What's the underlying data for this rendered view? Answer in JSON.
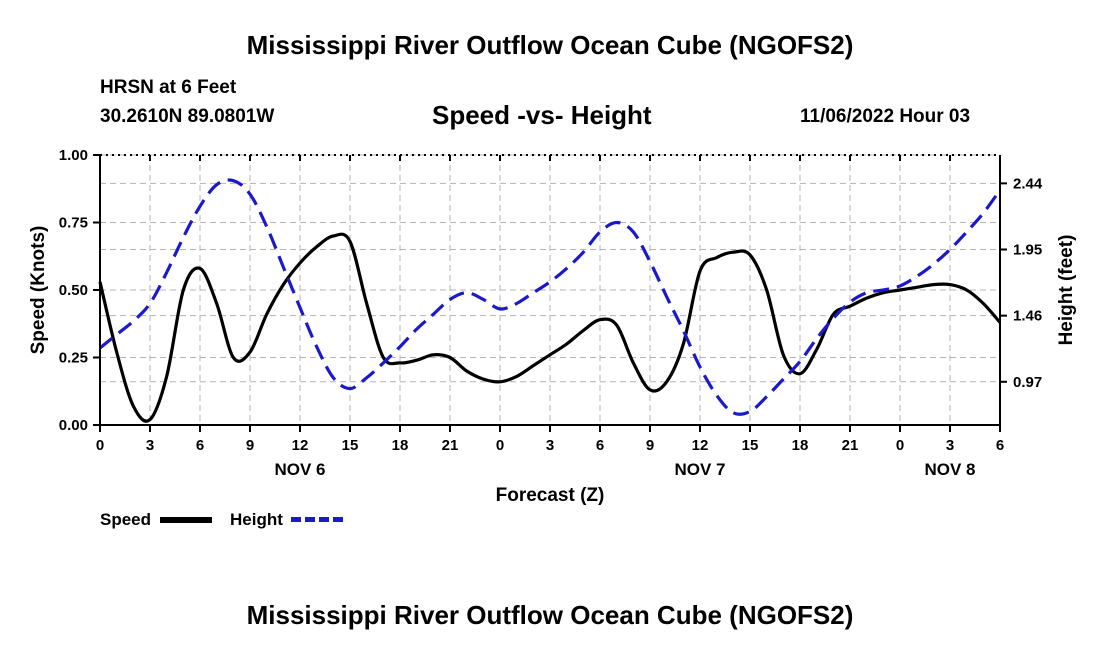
{
  "header": {
    "title": "Mississippi River Outflow Ocean Cube (NGOFS2)",
    "station": "HRSN at 6 Feet",
    "latlon": "30.2610N  89.0801W",
    "subtitle": "Speed -vs- Height",
    "datetime": "11/06/2022 Hour 03"
  },
  "footer": {
    "title": "Mississippi River Outflow Ocean Cube (NGOFS2)"
  },
  "legend": {
    "speed_label": "Speed",
    "height_label": "Height"
  },
  "colors": {
    "speed": "#000000",
    "height": "#1a1acc",
    "grid": "#b4b4b4"
  },
  "chart_data": {
    "type": "line",
    "xlabel": "Forecast (Z)",
    "ylabel": "Speed (Knots)",
    "ylabel_right": "Height (feet)",
    "xlim": [
      0,
      54
    ],
    "ylim": [
      0,
      1.0
    ],
    "ylim_right": [
      0.65,
      2.65
    ],
    "x_ticks": [
      0,
      3,
      6,
      9,
      12,
      15,
      18,
      21,
      24,
      27,
      30,
      33,
      36,
      39,
      42,
      45,
      48,
      51,
      54
    ],
    "x_tick_labels": [
      "0",
      "3",
      "6",
      "9",
      "12",
      "15",
      "18",
      "21",
      "0",
      "3",
      "6",
      "9",
      "12",
      "15",
      "18",
      "21",
      "0",
      "3",
      "6"
    ],
    "day_labels": [
      {
        "x": 12,
        "label": "NOV 6"
      },
      {
        "x": 36,
        "label": "NOV 7"
      },
      {
        "x": 51,
        "label": "NOV 8"
      }
    ],
    "y_ticks": [
      0,
      0.25,
      0.5,
      0.75,
      1.0
    ],
    "y_tick_labels": [
      "0.00",
      "0.25",
      "0.50",
      "0.75",
      "1.00"
    ],
    "y_ticks_right": [
      0.97,
      1.46,
      1.95,
      2.44
    ],
    "y_tick_labels_right": [
      "0.97",
      "1.46",
      "1.95",
      "2.44"
    ],
    "series": [
      {
        "name": "Speed",
        "axis": "left",
        "style": "solid",
        "x": [
          0,
          1,
          2,
          3,
          4,
          5,
          6,
          7,
          8,
          9,
          10,
          11,
          12,
          13,
          14,
          15,
          16,
          17,
          18,
          19,
          20,
          21,
          22,
          23,
          24,
          25,
          26,
          27,
          28,
          29,
          30,
          31,
          32,
          33,
          34,
          35,
          36,
          37,
          38,
          39,
          40,
          41,
          42,
          43,
          44,
          45,
          46,
          47,
          48,
          49,
          50,
          51,
          52,
          53,
          54
        ],
        "values": [
          0.53,
          0.27,
          0.07,
          0.02,
          0.18,
          0.5,
          0.58,
          0.45,
          0.25,
          0.27,
          0.41,
          0.52,
          0.6,
          0.66,
          0.7,
          0.68,
          0.45,
          0.25,
          0.23,
          0.24,
          0.26,
          0.25,
          0.2,
          0.17,
          0.16,
          0.18,
          0.22,
          0.26,
          0.3,
          0.35,
          0.39,
          0.37,
          0.23,
          0.13,
          0.16,
          0.3,
          0.57,
          0.62,
          0.64,
          0.63,
          0.5,
          0.26,
          0.19,
          0.28,
          0.41,
          0.44,
          0.47,
          0.49,
          0.5,
          0.51,
          0.52,
          0.52,
          0.5,
          0.45,
          0.38
        ]
      },
      {
        "name": "Height",
        "axis": "right",
        "style": "dashed",
        "x": [
          0,
          1,
          2,
          3,
          4,
          5,
          6,
          7,
          8,
          9,
          10,
          11,
          12,
          13,
          14,
          15,
          16,
          17,
          18,
          19,
          20,
          21,
          22,
          23,
          24,
          25,
          26,
          27,
          28,
          29,
          30,
          31,
          32,
          33,
          34,
          35,
          36,
          37,
          38,
          39,
          40,
          41,
          42,
          43,
          44,
          45,
          46,
          47,
          48,
          49,
          50,
          51,
          52,
          53,
          54
        ],
        "values": [
          1.22,
          1.32,
          1.42,
          1.55,
          1.78,
          2.04,
          2.27,
          2.43,
          2.46,
          2.36,
          2.12,
          1.82,
          1.52,
          1.23,
          1.0,
          0.92,
          1.0,
          1.11,
          1.23,
          1.36,
          1.47,
          1.58,
          1.63,
          1.58,
          1.51,
          1.55,
          1.63,
          1.71,
          1.81,
          1.93,
          2.08,
          2.15,
          2.08,
          1.86,
          1.6,
          1.35,
          1.08,
          0.87,
          0.74,
          0.75,
          0.86,
          0.99,
          1.12,
          1.29,
          1.44,
          1.56,
          1.63,
          1.65,
          1.68,
          1.75,
          1.84,
          1.95,
          2.08,
          2.22,
          2.39
        ]
      }
    ]
  }
}
